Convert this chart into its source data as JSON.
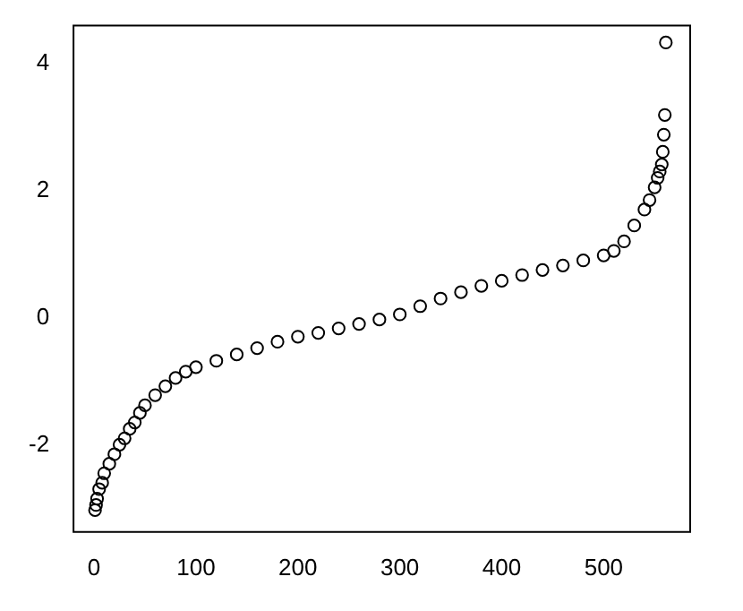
{
  "chart_data": {
    "type": "scatter",
    "marker": "circle",
    "grid": false,
    "legend": false,
    "xlim": [
      -21,
      584
    ],
    "xticks": [
      0,
      100,
      200,
      300,
      400,
      500
    ],
    "ylim": [
      -3.36,
      4.61
    ],
    "yticks": [
      -2,
      0,
      2,
      4
    ],
    "series": [
      {
        "color": "#000000",
        "x": [
          1,
          2,
          3,
          5,
          8,
          10,
          15,
          20,
          25,
          30,
          35,
          40,
          45,
          50,
          60,
          70,
          80,
          90,
          100,
          120,
          140,
          160,
          180,
          200,
          220,
          240,
          260,
          280,
          300,
          320,
          340,
          360,
          380,
          400,
          420,
          440,
          460,
          480,
          500,
          510,
          520,
          530,
          540,
          545,
          550,
          553,
          555,
          557,
          558,
          559,
          560,
          561
        ],
        "values": [
          -3.03,
          -2.95,
          -2.85,
          -2.7,
          -2.6,
          -2.45,
          -2.3,
          -2.15,
          -2.0,
          -1.9,
          -1.75,
          -1.65,
          -1.5,
          -1.38,
          -1.22,
          -1.08,
          -0.95,
          -0.85,
          -0.78,
          -0.68,
          -0.58,
          -0.48,
          -0.38,
          -0.3,
          -0.24,
          -0.17,
          -0.1,
          -0.03,
          0.05,
          0.18,
          0.3,
          0.4,
          0.5,
          0.58,
          0.67,
          0.75,
          0.82,
          0.9,
          0.98,
          1.05,
          1.2,
          1.45,
          1.7,
          1.85,
          2.05,
          2.2,
          2.3,
          2.41,
          2.61,
          2.88,
          3.19,
          4.33
        ]
      }
    ]
  }
}
